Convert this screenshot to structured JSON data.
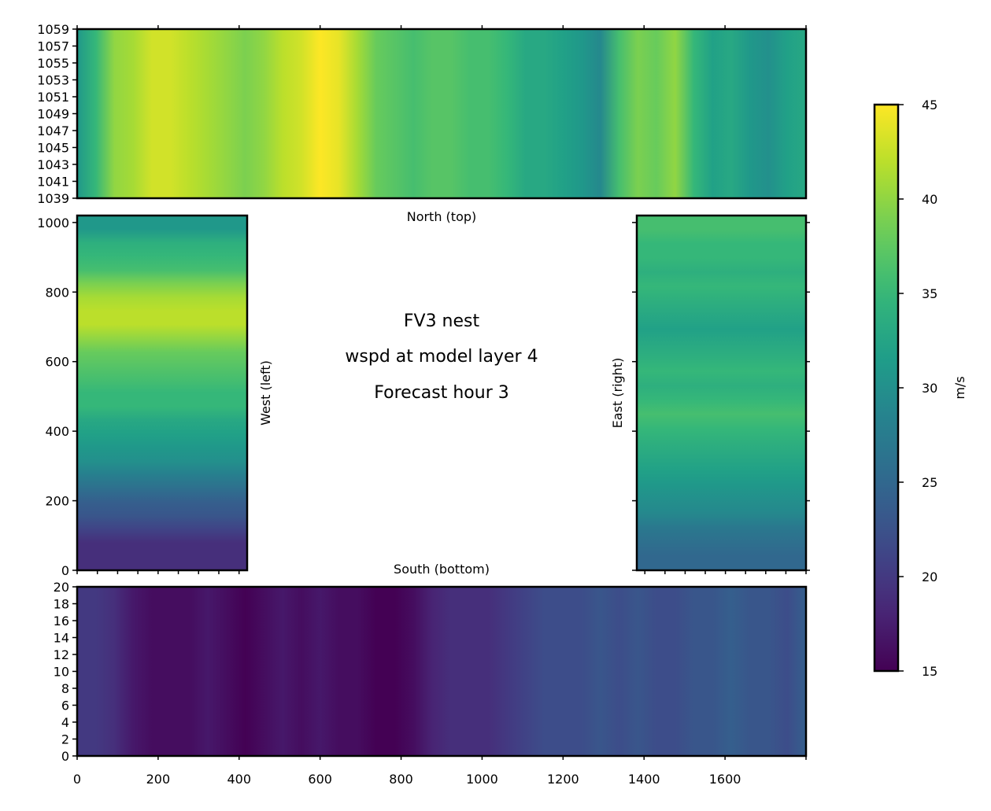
{
  "chart_data": [
    {
      "panel": "north",
      "type": "heatmap",
      "xlabel": "North (top)",
      "xlim": [
        0,
        1800
      ],
      "ylim": [
        1039,
        1059
      ],
      "yticks": [
        1039,
        1041,
        1043,
        1045,
        1047,
        1049,
        1051,
        1053,
        1055,
        1057,
        1059
      ],
      "x_ticks_labeled": false,
      "values_ms": [
        31,
        35,
        40,
        41,
        43,
        43,
        42,
        41,
        40,
        39,
        40,
        42,
        43,
        45,
        44,
        41,
        38,
        37,
        36,
        37,
        37,
        36,
        36,
        35,
        33,
        33,
        32,
        31,
        29,
        36,
        39,
        38,
        40,
        35,
        32,
        33,
        31,
        30,
        32,
        33
      ],
      "values_along_x_step": 45,
      "colorbar": "shared"
    },
    {
      "panel": "west",
      "type": "heatmap",
      "ylabel": "West (left)",
      "xlim": [
        0,
        420
      ],
      "ylim": [
        0,
        1020
      ],
      "yticks": [
        0,
        200,
        400,
        600,
        800,
        1000
      ],
      "x_ticks_labeled": false,
      "values_ms": [
        19,
        19,
        19,
        21,
        23,
        24,
        26,
        28,
        30,
        31,
        32,
        33,
        35,
        35,
        36,
        37,
        38,
        40,
        42,
        42,
        41,
        39,
        36,
        35,
        34,
        31,
        31
      ],
      "values_along_y_step": 40,
      "colorbar": "shared"
    },
    {
      "panel": "east",
      "type": "heatmap",
      "ylabel": "East (right)",
      "xlim": [
        1380,
        1800
      ],
      "ylim": [
        0,
        1020
      ],
      "yticks": [
        0,
        200,
        400,
        600,
        800,
        1000
      ],
      "x_ticks_labeled": false,
      "values_ms": [
        25,
        25,
        26,
        27,
        29,
        30,
        31,
        32,
        33,
        34,
        35,
        36,
        35,
        34,
        35,
        34,
        33,
        32,
        33,
        34,
        35,
        34,
        35,
        35,
        36,
        36
      ],
      "values_along_y_step": 40,
      "colorbar": "shared"
    },
    {
      "panel": "south",
      "type": "heatmap",
      "xlabel": "South (bottom)",
      "xlim": [
        0,
        1800
      ],
      "ylim": [
        0,
        20
      ],
      "xticks": [
        0,
        200,
        400,
        600,
        800,
        1000,
        1200,
        1400,
        1600
      ],
      "yticks": [
        0,
        2,
        4,
        6,
        8,
        10,
        12,
        14,
        16,
        18,
        20
      ],
      "values_ms": [
        20,
        20,
        19,
        17,
        16,
        16,
        16,
        17,
        16,
        15,
        16,
        17,
        16,
        17,
        16,
        16,
        15,
        15,
        16,
        18,
        19,
        19,
        19,
        20,
        21,
        22,
        22,
        22,
        23,
        22,
        23,
        22,
        22,
        23,
        23,
        24,
        23,
        23,
        22,
        24
      ],
      "values_along_x_step": 45,
      "colorbar": "shared"
    },
    {
      "panel": "colorbar",
      "type": "colorbar",
      "colormap": "viridis",
      "label": "m/s",
      "ylim": [
        15,
        45
      ],
      "ticks": [
        15,
        20,
        25,
        30,
        35,
        40,
        45
      ]
    }
  ],
  "title_lines": [
    "FV3 nest",
    "wspd at model layer 4",
    "Forecast hour 3"
  ]
}
